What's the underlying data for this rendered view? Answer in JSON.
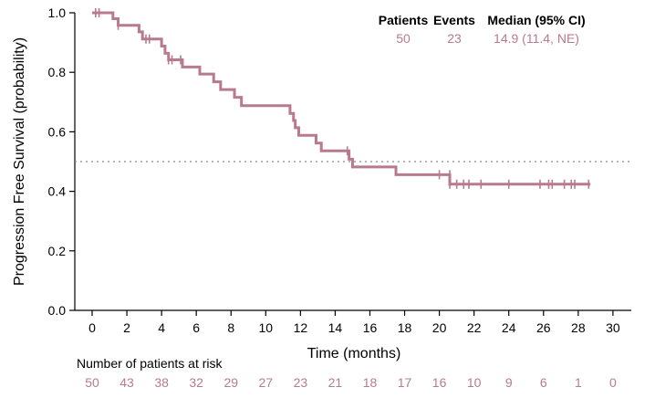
{
  "chart_data": {
    "type": "line",
    "subtype": "kaplan-meier",
    "xlabel": "Time (months)",
    "ylabel": "Progression Free Survival (probability)",
    "xlim": [
      -1,
      31
    ],
    "ylim": [
      0,
      1
    ],
    "x_ticks": [
      0,
      2,
      4,
      6,
      8,
      10,
      12,
      14,
      16,
      18,
      20,
      22,
      24,
      26,
      28,
      30
    ],
    "y_ticks": [
      "0.0",
      "0.2",
      "0.4",
      "0.6",
      "0.8",
      "1.0"
    ],
    "reference_line": {
      "y": 0.5,
      "style": "dotted"
    },
    "series_color": "#b87a8e",
    "step_points": [
      [
        0,
        1.0
      ],
      [
        1.2,
        0.98
      ],
      [
        1.5,
        0.958
      ],
      [
        2.7,
        0.936
      ],
      [
        2.9,
        0.912
      ],
      [
        4.0,
        0.888
      ],
      [
        4.2,
        0.864
      ],
      [
        4.4,
        0.842
      ],
      [
        5.2,
        0.818
      ],
      [
        6.2,
        0.794
      ],
      [
        7.0,
        0.768
      ],
      [
        7.4,
        0.742
      ],
      [
        8.2,
        0.716
      ],
      [
        8.6,
        0.688
      ],
      [
        11.4,
        0.662
      ],
      [
        11.6,
        0.638
      ],
      [
        11.7,
        0.614
      ],
      [
        11.9,
        0.588
      ],
      [
        12.9,
        0.562
      ],
      [
        13.2,
        0.536
      ],
      [
        14.8,
        0.508
      ],
      [
        15.0,
        0.482
      ],
      [
        17.5,
        0.456
      ],
      [
        20.6,
        0.424
      ],
      [
        28.7,
        0.424
      ]
    ],
    "censor_points": [
      [
        0.2,
        1.0
      ],
      [
        0.4,
        1.0
      ],
      [
        1.5,
        0.958
      ],
      [
        3.1,
        0.912
      ],
      [
        3.3,
        0.912
      ],
      [
        4.4,
        0.842
      ],
      [
        4.6,
        0.842
      ],
      [
        5.1,
        0.842
      ],
      [
        14.7,
        0.536
      ],
      [
        20.0,
        0.456
      ],
      [
        20.6,
        0.456
      ],
      [
        20.6,
        0.424
      ],
      [
        21.0,
        0.424
      ],
      [
        21.4,
        0.424
      ],
      [
        21.7,
        0.424
      ],
      [
        22.4,
        0.424
      ],
      [
        24.0,
        0.424
      ],
      [
        25.8,
        0.424
      ],
      [
        26.3,
        0.424
      ],
      [
        26.5,
        0.424
      ],
      [
        27.2,
        0.424
      ],
      [
        27.6,
        0.424
      ],
      [
        27.8,
        0.424
      ],
      [
        28.6,
        0.424
      ]
    ],
    "legend": {
      "headers": [
        "Patients",
        "Events",
        "Median (95% CI)"
      ],
      "values": [
        "50",
        "23",
        "14.9 (11.4, NE)"
      ]
    },
    "risk_table": {
      "title": "Number of patients at risk",
      "times": [
        0,
        2,
        4,
        6,
        8,
        10,
        12,
        14,
        16,
        18,
        20,
        22,
        24,
        26,
        28,
        30
      ],
      "counts": [
        "50",
        "43",
        "38",
        "32",
        "29",
        "27",
        "23",
        "21",
        "18",
        "17",
        "16",
        "10",
        "9",
        "6",
        "1",
        "0"
      ]
    }
  }
}
